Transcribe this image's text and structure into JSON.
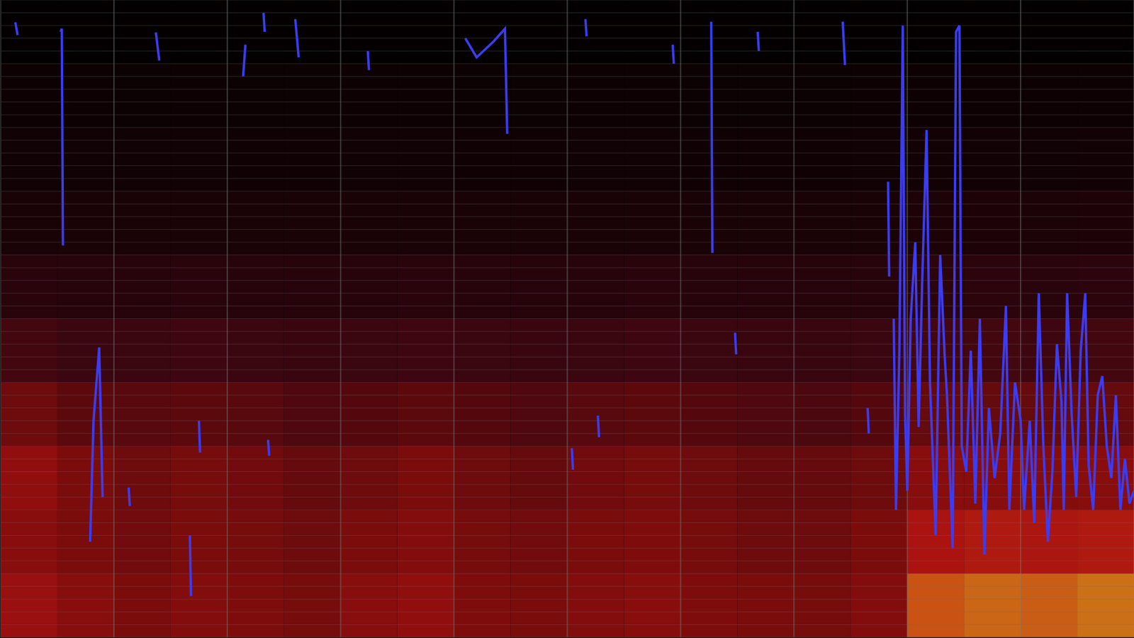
{
  "chart_data": {
    "type": "spectrogram",
    "xlim": [
      0,
      100
    ],
    "ylim": [
      0,
      100
    ],
    "xticks": [
      0,
      10,
      20,
      30,
      40,
      50,
      60,
      70,
      80,
      90,
      100
    ],
    "yticks": [
      0,
      2,
      4,
      6,
      8,
      10,
      12,
      14,
      16,
      18,
      20,
      22,
      24,
      26,
      28,
      30,
      32,
      34,
      36,
      38,
      40,
      42,
      44,
      46,
      48,
      50,
      52,
      54,
      56,
      58,
      60,
      62,
      64,
      66,
      68,
      70,
      72,
      74,
      76,
      78,
      80,
      82,
      84,
      86,
      88,
      90,
      92,
      94,
      96,
      98,
      100
    ],
    "grid": true,
    "tick_labels": false,
    "color": "#3c3cf0",
    "x": [
      1.3,
      1.5,
      2.5,
      5.3,
      5.4,
      5.5,
      6.5,
      7.9,
      8.2,
      8.7,
      9.0,
      10,
      11.3,
      11.4,
      12.5,
      13.7,
      14.0,
      15,
      16.7,
      16.8,
      17.1,
      17.5,
      17.6,
      19,
      21.4,
      21.6,
      22.5,
      23.2,
      23.3,
      23.45,
      23.6,
      23.7,
      25,
      26.0,
      26.3,
      30,
      32.4,
      32.5,
      37,
      41.0,
      42.0,
      43.5,
      44.5,
      44.7,
      47,
      50.4,
      50.5,
      51,
      51.6,
      51.7,
      52.2,
      52.7,
      52.8,
      56,
      59.3,
      59.4,
      61,
      62.7,
      62.8,
      64,
      64.8,
      64.9,
      66,
      66.8,
      66.9,
      70,
      74.3,
      74.5,
      75.5,
      76.5,
      76.6,
      77.5,
      78.3,
      78.4,
      78.6,
      78.8,
      79.0,
      79.3,
      79.6,
      79.8,
      80.0,
      80.3,
      80.7,
      81.0,
      81.3,
      81.7,
      82.0,
      82.5,
      82.9,
      83.3,
      83.5,
      84.0,
      84.3,
      84.6,
      84.8,
      85.2,
      85.6,
      86.0,
      86.4,
      86.8,
      87.2,
      87.7,
      88.2,
      88.7,
      89.0,
      89.5,
      90.0,
      90.3,
      90.8,
      91.2,
      91.6,
      92.0,
      92.4,
      92.8,
      93.2,
      93.6,
      93.8,
      94.1,
      94.5,
      94.9,
      95.3,
      95.7,
      96.0,
      96.4,
      96.8,
      97.2,
      97.6,
      98.0,
      98.4,
      98.8,
      99.2,
      99.6,
      100
    ],
    "values": [
      96.5,
      94.5,
      null,
      95,
      95.5,
      61.5,
      null,
      15,
      34,
      45.5,
      22,
      null,
      23.5,
      20.6,
      null,
      94.9,
      90.5,
      null,
      16,
      6.5,
      null,
      34,
      29,
      null,
      88,
      93,
      null,
      98,
      95,
      null,
      31,
      28.5,
      null,
      97,
      91,
      null,
      92,
      89,
      null,
      94,
      91,
      93.5,
      95.5,
      79,
      null,
      29.7,
      26.3,
      null,
      97,
      94.3,
      null,
      34.8,
      31.4,
      null,
      93,
      90,
      null,
      96.6,
      60.3,
      null,
      47.8,
      44.4,
      null,
      95,
      92,
      null,
      96.6,
      89.8,
      null,
      36,
      32,
      null,
      71.5,
      56.6,
      null,
      50,
      20,
      45,
      96,
      35,
      23,
      50,
      62,
      33,
      55,
      79.6,
      40,
      16,
      60,
      44,
      38,
      14,
      95,
      96,
      30,
      26,
      45,
      21,
      50,
      13,
      36,
      25,
      32,
      52,
      20,
      40,
      34,
      20,
      34,
      18,
      54,
      30,
      15,
      26,
      46,
      37,
      20,
      54,
      35,
      22,
      45,
      54,
      27,
      20,
      38,
      41,
      30,
      25,
      38,
      20,
      28,
      21,
      23
    ],
    "cells": {
      "x_edges": [
        0,
        5,
        10,
        15,
        20,
        25,
        30,
        35,
        40,
        45,
        50,
        55,
        60,
        65,
        70,
        75,
        80,
        85,
        90,
        95,
        100
      ],
      "y_edges": [
        0,
        10,
        20,
        30,
        40,
        50,
        60,
        70,
        80,
        90,
        100
      ],
      "zlim": [
        0,
        100
      ],
      "values": [
        [
          62,
          58,
          55,
          57,
          56,
          54,
          58,
          60,
          56,
          55,
          57,
          58,
          56,
          55,
          54,
          57,
          82,
          84,
          83,
          85
        ],
        [
          58,
          55,
          53,
          55,
          54,
          52,
          55,
          57,
          54,
          53,
          55,
          56,
          54,
          52,
          52,
          55,
          66,
          68,
          67,
          68
        ],
        [
          60,
          55,
          52,
          54,
          53,
          50,
          52,
          55,
          52,
          50,
          53,
          54,
          52,
          50,
          50,
          52,
          58,
          58,
          57,
          58
        ],
        [
          52,
          48,
          47,
          48,
          47,
          45,
          46,
          48,
          46,
          45,
          47,
          48,
          46,
          45,
          44,
          46,
          50,
          50,
          50,
          50
        ],
        [
          42,
          40,
          40,
          41,
          40,
          39,
          40,
          41,
          40,
          39,
          40,
          41,
          40,
          39,
          38,
          40,
          42,
          42,
          41,
          42
        ],
        [
          28,
          27,
          27,
          28,
          27,
          26,
          27,
          28,
          27,
          26,
          27,
          28,
          27,
          26,
          26,
          27,
          30,
          30,
          29,
          30
        ],
        [
          18,
          18,
          17,
          18,
          17,
          17,
          18,
          18,
          17,
          17,
          18,
          18,
          17,
          17,
          17,
          18,
          20,
          20,
          19,
          20
        ],
        [
          12,
          12,
          12,
          12,
          11,
          11,
          12,
          12,
          11,
          11,
          12,
          12,
          11,
          11,
          11,
          12,
          13,
          13,
          12,
          13
        ],
        [
          9,
          9,
          8,
          9,
          8,
          8,
          9,
          9,
          8,
          8,
          9,
          9,
          8,
          8,
          8,
          9,
          9,
          9,
          9,
          9
        ],
        [
          3,
          3,
          3,
          3,
          3,
          3,
          3,
          3,
          3,
          3,
          3,
          3,
          3,
          3,
          3,
          3,
          3,
          3,
          3,
          3
        ]
      ]
    }
  }
}
